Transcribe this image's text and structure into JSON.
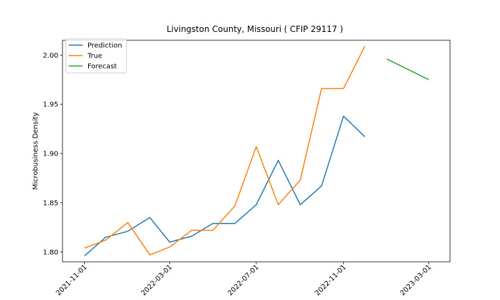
{
  "chart_data": {
    "type": "line",
    "title": "Livingston County, Missouri ( CFIP 29117 )",
    "xlabel": "",
    "ylabel": "Microbusiness Density",
    "xlim": [
      "2021-10-01",
      "2023-03-31"
    ],
    "ylim": [
      1.79,
      2.015
    ],
    "x_ticks": [
      "2021-11-01",
      "2022-03-01",
      "2022-07-01",
      "2022-11-01",
      "2023-03-01"
    ],
    "y_ticks": [
      "1.80",
      "1.85",
      "1.90",
      "1.95",
      "2.00"
    ],
    "legend_position": "top-left",
    "grid": false,
    "series": [
      {
        "name": "Prediction",
        "color": "#1f77b4",
        "x": [
          "2021-11-01",
          "2021-12-01",
          "2022-01-01",
          "2022-02-01",
          "2022-03-01",
          "2022-04-01",
          "2022-05-01",
          "2022-06-01",
          "2022-07-01",
          "2022-08-01",
          "2022-09-01",
          "2022-10-01",
          "2022-11-01",
          "2022-12-01"
        ],
        "y": [
          1.796,
          1.815,
          1.821,
          1.835,
          1.81,
          1.816,
          1.829,
          1.829,
          1.848,
          1.893,
          1.848,
          1.867,
          1.938,
          1.917
        ]
      },
      {
        "name": "True",
        "color": "#ff7f0e",
        "x": [
          "2021-11-01",
          "2021-12-01",
          "2022-01-01",
          "2022-02-01",
          "2022-03-01",
          "2022-04-01",
          "2022-05-01",
          "2022-06-01",
          "2022-07-01",
          "2022-08-01",
          "2022-09-01",
          "2022-10-01",
          "2022-11-01",
          "2022-12-01"
        ],
        "y": [
          1.804,
          1.812,
          1.83,
          1.797,
          1.805,
          1.822,
          1.822,
          1.847,
          1.907,
          1.848,
          1.873,
          1.966,
          1.966,
          2.009
        ]
      },
      {
        "name": "Forecast",
        "color": "#2ca02c",
        "x": [
          "2023-01-01",
          "2023-02-01",
          "2023-03-01"
        ],
        "y": [
          1.996,
          1.985,
          1.975
        ]
      }
    ]
  }
}
